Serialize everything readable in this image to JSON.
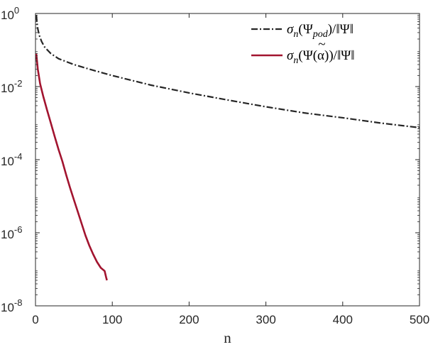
{
  "chart_data": {
    "type": "line",
    "title": "",
    "xlabel": "n",
    "ylabel": "",
    "xlim": [
      0,
      500
    ],
    "ylim": [
      1e-08,
      1
    ],
    "yscale": "log",
    "grid": false,
    "legend_position": "top-right",
    "x_ticks": [
      0,
      100,
      200,
      300,
      400,
      500
    ],
    "x_tick_labels": [
      "0",
      "100",
      "200",
      "300",
      "400",
      "500"
    ],
    "y_ticks": [
      1e-08,
      1e-06,
      0.0001,
      0.01,
      1
    ],
    "y_tick_labels": [
      {
        "base": "10",
        "exp": "-8"
      },
      {
        "base": "10",
        "exp": "-6"
      },
      {
        "base": "10",
        "exp": "-4"
      },
      {
        "base": "10",
        "exp": "-2"
      },
      {
        "base": "10",
        "exp": "0"
      }
    ],
    "series": [
      {
        "name": "σn(Ψpod)/‖Ψ‖",
        "legend_parts": {
          "sigma": "σ",
          "sub_n": "n",
          "open": "(Ψ",
          "sub": "pod",
          "rest": ")/‖Ψ‖"
        },
        "color": "#262626",
        "dash": "dashdot",
        "x": [
          1,
          2,
          3,
          5,
          8,
          12,
          20,
          30,
          50,
          75,
          100,
          150,
          200,
          250,
          300,
          350,
          400,
          450,
          500
        ],
        "y": [
          0.9,
          0.55,
          0.38,
          0.25,
          0.17,
          0.12,
          0.08,
          0.058,
          0.04,
          0.028,
          0.02,
          0.011,
          0.0067,
          0.0043,
          0.0028,
          0.0019,
          0.0014,
          0.001,
          0.00075
        ]
      },
      {
        "name": "σn(Ψ̃(α))/‖Ψ‖",
        "legend_parts": {
          "sigma": "σ",
          "sub_n": "n",
          "open": "(",
          "psi": "Ψ",
          "rest": "(α))/‖Ψ‖"
        },
        "color": "#a2142f",
        "dash": "solid",
        "x": [
          1,
          3,
          6,
          10,
          15,
          20,
          25,
          30,
          35,
          40,
          45,
          50,
          55,
          60,
          65,
          70,
          75,
          80,
          85,
          90,
          92,
          93
        ],
        "y": [
          0.08,
          0.03,
          0.012,
          0.0055,
          0.0023,
          0.001,
          0.00043,
          0.00019,
          9e-05,
          3.8e-05,
          1.7e-05,
          8e-06,
          3.8e-06,
          1.8e-06,
          8.5e-07,
          4.5e-07,
          2.6e-07,
          1.6e-07,
          1.1e-07,
          9e-08,
          6e-08,
          5e-08
        ]
      }
    ]
  }
}
